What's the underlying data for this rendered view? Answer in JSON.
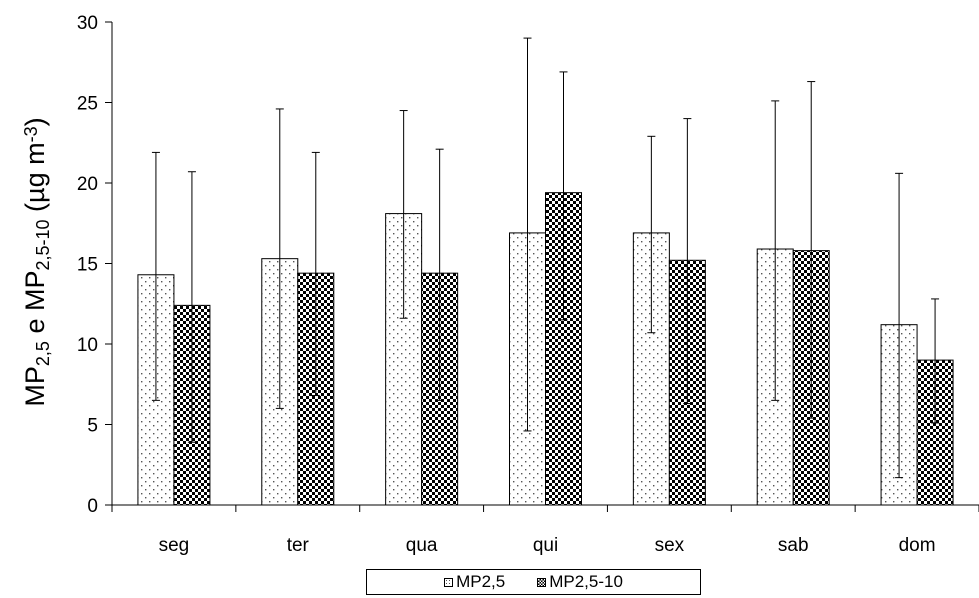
{
  "chart_data": {
    "type": "bar",
    "title": "",
    "xlabel": "",
    "ylabel_parts": [
      "MP",
      "2,5",
      " e MP",
      "2,5-10",
      "  (µg m",
      "-3",
      ")"
    ],
    "categories": [
      "seg",
      "ter",
      "qua",
      "qui",
      "sex",
      "sab",
      "dom"
    ],
    "ylim": [
      0,
      30
    ],
    "yticks": [
      "0",
      "5",
      "10",
      "15",
      "20",
      "25",
      "30"
    ],
    "series": [
      {
        "name": "MP2,5",
        "values": [
          14.3,
          15.3,
          18.1,
          16.9,
          16.9,
          15.9,
          11.2
        ],
        "error_low": [
          6.5,
          6.0,
          11.6,
          4.6,
          10.7,
          6.5,
          1.7
        ],
        "error_high": [
          21.9,
          24.6,
          24.5,
          29.0,
          22.9,
          25.1,
          20.6
        ],
        "pattern": "sparse-dots",
        "color": "#000000"
      },
      {
        "name": "MP2,5-10",
        "values": [
          12.4,
          14.4,
          14.4,
          19.4,
          15.2,
          15.8,
          9.0
        ],
        "error_low": [
          3.9,
          6.8,
          6.5,
          11.5,
          6.3,
          5.4,
          5.1
        ],
        "error_high": [
          20.7,
          21.9,
          22.1,
          26.9,
          24.0,
          26.3,
          12.8
        ],
        "pattern": "dense-dots",
        "color": "#000000"
      }
    ],
    "legend_position": "bottom",
    "grid": false
  }
}
